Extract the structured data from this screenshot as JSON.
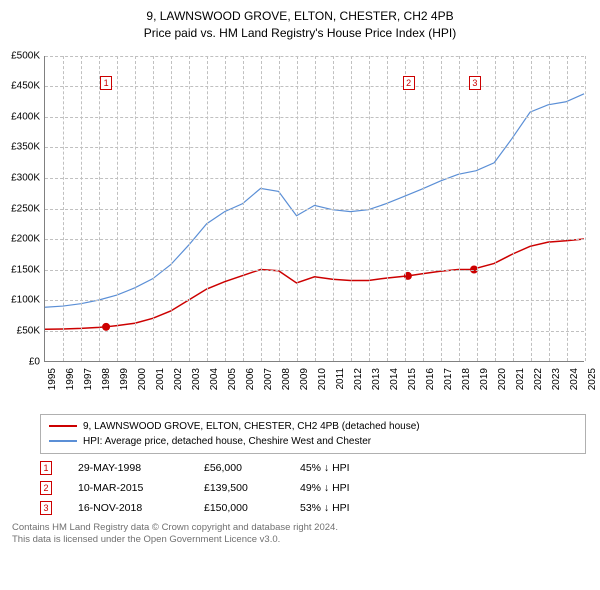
{
  "title": {
    "line1": "9, LAWNSWOOD GROVE, ELTON, CHESTER, CH2 4PB",
    "line2": "Price paid vs. HM Land Registry's House Price Index (HPI)"
  },
  "chart": {
    "type": "line",
    "background_color": "#ffffff",
    "grid_color": "#c0c0c0",
    "axis_color": "#808080",
    "label_fontsize": 10,
    "title_fontsize": 12,
    "y_axis": {
      "min": 0,
      "max": 500000,
      "ticks": [
        0,
        50000,
        100000,
        150000,
        200000,
        250000,
        300000,
        350000,
        400000,
        450000,
        500000
      ],
      "labels": [
        "£0",
        "£50K",
        "£100K",
        "£150K",
        "£200K",
        "£250K",
        "£300K",
        "£350K",
        "£400K",
        "£450K",
        "£500K"
      ]
    },
    "x_axis": {
      "min": 1995,
      "max": 2025,
      "ticks": [
        1995,
        1996,
        1997,
        1998,
        1999,
        2000,
        2001,
        2002,
        2003,
        2004,
        2005,
        2006,
        2007,
        2008,
        2009,
        2010,
        2011,
        2012,
        2013,
        2014,
        2015,
        2016,
        2017,
        2018,
        2019,
        2020,
        2021,
        2022,
        2023,
        2024,
        2025
      ],
      "labels": [
        "1995",
        "1996",
        "1997",
        "1998",
        "1999",
        "2000",
        "2001",
        "2002",
        "2003",
        "2004",
        "2005",
        "2006",
        "2007",
        "2008",
        "2009",
        "2010",
        "2011",
        "2012",
        "2013",
        "2014",
        "2015",
        "2016",
        "2017",
        "2018",
        "2019",
        "2020",
        "2021",
        "2022",
        "2023",
        "2024",
        "2025"
      ]
    },
    "series": [
      {
        "id": "property",
        "label": "9, LAWNSWOOD GROVE, ELTON, CHESTER, CH2 4PB (detached house)",
        "color": "#cc0000",
        "line_width": 1.5,
        "marker_color": "#cc0000",
        "marker_style": "circle",
        "marker_size": 4,
        "data": [
          [
            1995,
            52000
          ],
          [
            1996,
            52500
          ],
          [
            1997,
            53500
          ],
          [
            1998,
            55000
          ],
          [
            1998.4,
            56000
          ],
          [
            1999,
            58000
          ],
          [
            2000,
            62000
          ],
          [
            2001,
            70000
          ],
          [
            2002,
            82000
          ],
          [
            2003,
            100000
          ],
          [
            2004,
            118000
          ],
          [
            2005,
            130000
          ],
          [
            2006,
            140000
          ],
          [
            2007,
            150000
          ],
          [
            2008,
            148000
          ],
          [
            2009,
            128000
          ],
          [
            2010,
            138000
          ],
          [
            2011,
            134000
          ],
          [
            2012,
            132000
          ],
          [
            2013,
            132000
          ],
          [
            2014,
            136000
          ],
          [
            2015.2,
            139500
          ],
          [
            2016,
            143000
          ],
          [
            2017,
            147000
          ],
          [
            2018,
            150000
          ],
          [
            2018.88,
            150000
          ],
          [
            2019,
            152000
          ],
          [
            2020,
            160000
          ],
          [
            2021,
            175000
          ],
          [
            2022,
            188000
          ],
          [
            2023,
            195000
          ],
          [
            2024,
            197000
          ],
          [
            2025,
            200000
          ]
        ],
        "markers": [
          {
            "n": "1",
            "x": 1998.4,
            "y": 56000
          },
          {
            "n": "2",
            "x": 2015.2,
            "y": 139500
          },
          {
            "n": "3",
            "x": 2018.88,
            "y": 150000
          }
        ],
        "marker_boxes": [
          {
            "n": "1",
            "x": 1998.4,
            "y_offset": 455000
          },
          {
            "n": "2",
            "x": 2015.2,
            "y_offset": 455000
          },
          {
            "n": "3",
            "x": 2018.88,
            "y_offset": 455000
          }
        ]
      },
      {
        "id": "hpi",
        "label": "HPI: Average price, detached house, Cheshire West and Chester",
        "color": "#5b8fd6",
        "line_width": 1.2,
        "data": [
          [
            1995,
            88000
          ],
          [
            1996,
            90000
          ],
          [
            1997,
            94000
          ],
          [
            1998,
            100000
          ],
          [
            1999,
            108000
          ],
          [
            2000,
            120000
          ],
          [
            2001,
            135000
          ],
          [
            2002,
            158000
          ],
          [
            2003,
            190000
          ],
          [
            2004,
            225000
          ],
          [
            2005,
            245000
          ],
          [
            2006,
            258000
          ],
          [
            2007,
            283000
          ],
          [
            2008,
            278000
          ],
          [
            2008.7,
            250000
          ],
          [
            2009,
            238000
          ],
          [
            2010,
            255000
          ],
          [
            2011,
            248000
          ],
          [
            2012,
            245000
          ],
          [
            2013,
            248000
          ],
          [
            2014,
            258000
          ],
          [
            2015,
            270000
          ],
          [
            2016,
            282000
          ],
          [
            2017,
            295000
          ],
          [
            2018,
            306000
          ],
          [
            2019,
            312000
          ],
          [
            2020,
            325000
          ],
          [
            2021,
            365000
          ],
          [
            2022,
            408000
          ],
          [
            2023,
            420000
          ],
          [
            2024,
            425000
          ],
          [
            2025,
            438000
          ]
        ]
      }
    ]
  },
  "legend": {
    "border_color": "#b0b0b0",
    "fontsize": 10,
    "items": [
      {
        "color": "#cc0000",
        "label": "9, LAWNSWOOD GROVE, ELTON, CHESTER, CH2 4PB (detached house)"
      },
      {
        "color": "#5b8fd6",
        "label": "HPI: Average price, detached house, Cheshire West and Chester"
      }
    ]
  },
  "sales": [
    {
      "n": "1",
      "date": "29-MAY-1998",
      "price": "£56,000",
      "pct": "45% ↓ HPI"
    },
    {
      "n": "2",
      "date": "10-MAR-2015",
      "price": "£139,500",
      "pct": "49% ↓ HPI"
    },
    {
      "n": "3",
      "date": "16-NOV-2018",
      "price": "£150,000",
      "pct": "53% ↓ HPI"
    }
  ],
  "footer": {
    "line1": "Contains HM Land Registry data © Crown copyright and database right 2024.",
    "line2": "This data is licensed under the Open Government Licence v3.0."
  }
}
